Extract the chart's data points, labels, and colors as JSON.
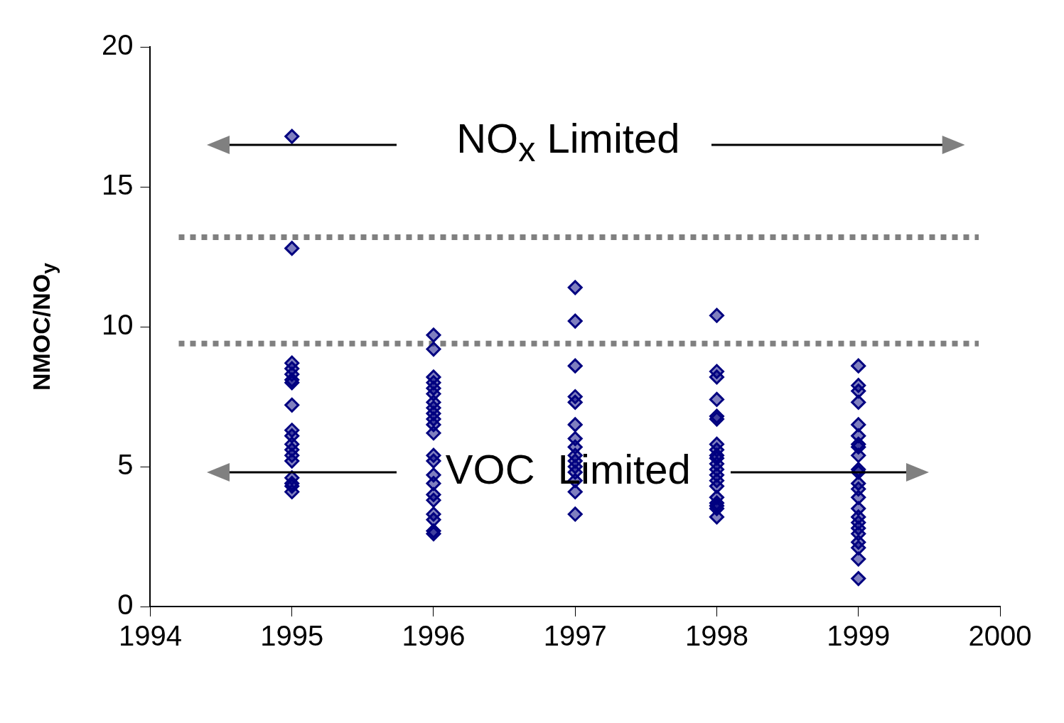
{
  "chart_data": {
    "type": "scatter",
    "ylabel": "NMOC/NO$_{y}$",
    "annotations": [
      "NO$_{x}$ Limited",
      "VOC  Limited"
    ],
    "xlim": [
      1994,
      2000
    ],
    "xticks": [
      1994,
      1995,
      1996,
      1997,
      1998,
      1999,
      2000
    ],
    "ylim": [
      0,
      20
    ],
    "yticks": [
      0,
      5,
      10,
      15,
      20
    ],
    "grid": false,
    "legend": false,
    "marker": "diamond",
    "ref_lines": [
      {
        "axis": "y",
        "value": 13.2,
        "color": "#808080",
        "line_style": "dotted"
      },
      {
        "axis": "y",
        "value": 9.4,
        "color": "#808080",
        "line_style": "dotted"
      }
    ],
    "series": [
      {
        "color": "#000080",
        "x": [
          1995,
          1995,
          1995,
          1995,
          1995,
          1995,
          1995,
          1995,
          1995,
          1995,
          1995,
          1995,
          1995,
          1995,
          1995,
          1995,
          1995,
          1995,
          1996,
          1996,
          1996,
          1996,
          1996,
          1996,
          1996,
          1996,
          1996,
          1996,
          1996,
          1996,
          1996,
          1996,
          1996,
          1996,
          1996,
          1996,
          1996,
          1996,
          1996,
          1996,
          1997,
          1997,
          1997,
          1997,
          1997,
          1997,
          1997,
          1997,
          1997,
          1997,
          1997,
          1997,
          1997,
          1997,
          1997,
          1998,
          1998,
          1998,
          1998,
          1998,
          1998,
          1998,
          1998,
          1998,
          1998,
          1998,
          1998,
          1998,
          1998,
          1998,
          1998,
          1998,
          1998,
          1998,
          1998,
          1999,
          1999,
          1999,
          1999,
          1999,
          1999,
          1999,
          1999,
          1999,
          1999,
          1999,
          1999,
          1999,
          1999,
          1999,
          1999,
          1999,
          1999,
          1999,
          1999,
          1999,
          1999,
          1999
        ],
        "values": [
          16.8,
          12.8,
          8.7,
          8.5,
          8.3,
          8.1,
          8.0,
          7.2,
          6.3,
          6.1,
          5.8,
          5.6,
          5.4,
          5.2,
          4.6,
          4.4,
          4.3,
          4.1,
          9.7,
          9.2,
          8.2,
          8.0,
          7.8,
          7.6,
          7.3,
          7.1,
          6.9,
          6.7,
          6.5,
          6.2,
          5.4,
          5.2,
          4.7,
          4.4,
          4.0,
          3.8,
          3.3,
          3.1,
          2.7,
          2.6,
          11.4,
          10.2,
          8.6,
          7.5,
          7.3,
          6.5,
          6.0,
          5.7,
          5.4,
          5.2,
          5.0,
          4.8,
          4.5,
          4.1,
          3.3,
          10.4,
          8.4,
          8.2,
          7.4,
          6.8,
          6.7,
          5.8,
          5.6,
          5.4,
          5.3,
          5.1,
          4.9,
          4.7,
          4.5,
          4.3,
          3.9,
          3.7,
          3.6,
          3.5,
          3.2,
          8.6,
          7.9,
          7.7,
          7.3,
          6.5,
          6.1,
          5.8,
          5.7,
          5.4,
          4.9,
          4.8,
          4.4,
          4.2,
          3.9,
          3.5,
          3.2,
          3.0,
          2.8,
          2.6,
          2.3,
          2.1,
          1.7,
          1.0
        ]
      }
    ]
  }
}
